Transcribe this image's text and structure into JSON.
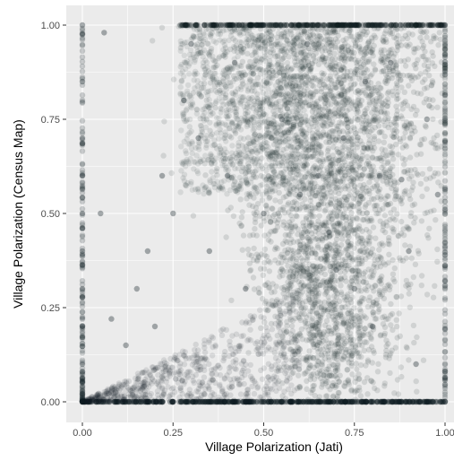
{
  "chart_data": {
    "type": "scatter",
    "title": "",
    "xlabel": "Village Polarization (Jati)",
    "ylabel": "Village Polarization (Census Map)",
    "xlim": [
      -0.04,
      1.0
    ],
    "ylim": [
      -0.04,
      1.04
    ],
    "xticks": [
      0.0,
      0.25,
      0.5,
      0.75,
      1.0
    ],
    "xtick_labels": [
      "0.00",
      "0.25",
      "0.50",
      "0.75",
      "1.00"
    ],
    "yticks": [
      0.0,
      0.25,
      0.5,
      0.75,
      1.0
    ],
    "ytick_labels": [
      "0.00",
      "0.25",
      "0.50",
      "0.75",
      "1.00"
    ],
    "grid": true,
    "legend": "none",
    "point_color": "#0f1e22",
    "point_opacity": 0.12,
    "panel_background": "#ebebeb",
    "grid_color": "#ffffff",
    "series": [
      {
        "values": [
          [
            0.0,
            0.0
          ],
          [
            0.0,
            0.02
          ],
          [
            0.0,
            0.05
          ],
          [
            0.0,
            0.1
          ],
          [
            0.0,
            0.2
          ],
          [
            0.0,
            0.3
          ],
          [
            0.0,
            0.4
          ],
          [
            0.0,
            0.5
          ],
          [
            0.0,
            0.6
          ],
          [
            0.0,
            0.7
          ],
          [
            0.0,
            0.85
          ],
          [
            0.0,
            1.0
          ],
          [
            0.06,
            0.98
          ],
          [
            0.05,
            0.5
          ],
          [
            0.08,
            0.22
          ],
          [
            0.12,
            0.15
          ],
          [
            0.15,
            0.3
          ],
          [
            0.18,
            0.4
          ],
          [
            0.2,
            0.2
          ],
          [
            0.22,
            0.6
          ],
          [
            0.25,
            0.5
          ],
          [
            0.28,
            0.8
          ],
          [
            0.3,
            0.95
          ],
          [
            0.32,
            0.7
          ],
          [
            0.35,
            0.4
          ],
          [
            0.4,
            0.6
          ],
          [
            0.42,
            0.9
          ],
          [
            0.45,
            0.3
          ],
          [
            0.5,
            0.5
          ],
          [
            0.55,
            0.75
          ],
          [
            0.6,
            0.55
          ],
          [
            0.62,
            0.95
          ],
          [
            0.65,
            0.6
          ],
          [
            0.68,
            0.45
          ],
          [
            0.7,
            0.35
          ],
          [
            0.72,
            0.7
          ],
          [
            0.75,
            0.3
          ],
          [
            0.78,
            0.85
          ],
          [
            0.8,
            0.2
          ],
          [
            0.82,
            0.6
          ],
          [
            0.85,
            0.9
          ],
          [
            0.88,
            0.59
          ],
          [
            0.9,
            0.4
          ],
          [
            0.92,
            0.1
          ],
          [
            0.95,
            0.75
          ],
          [
            0.98,
            0.55
          ],
          [
            1.0,
            1.0
          ],
          [
            1.0,
            0.0
          ],
          [
            0.5,
            1.0
          ],
          [
            0.75,
            1.0
          ],
          [
            0.5,
            0.0
          ],
          [
            0.75,
            0.0
          ],
          [
            0.25,
            0.0
          ],
          [
            0.9,
            0.0
          ]
        ]
      }
    ]
  }
}
